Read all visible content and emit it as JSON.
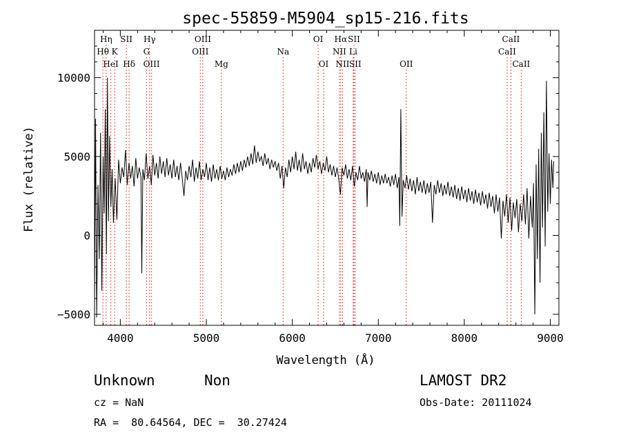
{
  "chart_data": {
    "type": "line",
    "title": "spec-55859-M5904_sp15-216.fits",
    "xlabel": "Wavelength (Å)",
    "ylabel": "Flux (relative)",
    "xlim": [
      3700,
      9100
    ],
    "ylim": [
      -5700,
      13000
    ],
    "xticks": [
      4000,
      5000,
      6000,
      7000,
      8000,
      9000
    ],
    "yticks": [
      -5000,
      0,
      5000,
      10000
    ],
    "grid": false,
    "series": [
      {
        "color": "#000000",
        "points": [
          [
            3700,
            -4200
          ],
          [
            3712,
            7400
          ],
          [
            3725,
            -5200
          ],
          [
            3740,
            3200
          ],
          [
            3755,
            -1500
          ],
          [
            3770,
            6500
          ],
          [
            3785,
            -3500
          ],
          [
            3800,
            5000
          ],
          [
            3812,
            1400
          ],
          [
            3825,
            8000
          ],
          [
            3838,
            -1200
          ],
          [
            3850,
            10000
          ],
          [
            3862,
            900
          ],
          [
            3875,
            6300
          ],
          [
            3890,
            1800
          ],
          [
            3905,
            4200
          ],
          [
            3920,
            800
          ],
          [
            3940,
            3600
          ],
          [
            3960,
            1000
          ],
          [
            3980,
            4800
          ],
          [
            4000,
            3300
          ],
          [
            4020,
            4300
          ],
          [
            4040,
            3700
          ],
          [
            4060,
            5400
          ],
          [
            4080,
            3200
          ],
          [
            4100,
            4600
          ],
          [
            4120,
            3600
          ],
          [
            4140,
            4400
          ],
          [
            4160,
            3100
          ],
          [
            4180,
            4900
          ],
          [
            4200,
            3600
          ],
          [
            4220,
            4300
          ],
          [
            4240,
            3700
          ],
          [
            4250,
            -2400
          ],
          [
            4262,
            4200
          ],
          [
            4280,
            3500
          ],
          [
            4300,
            5200
          ],
          [
            4320,
            3600
          ],
          [
            4340,
            4400
          ],
          [
            4360,
            3200
          ],
          [
            4380,
            5100
          ],
          [
            4400,
            3800
          ],
          [
            4420,
            4600
          ],
          [
            4440,
            3600
          ],
          [
            4460,
            5000
          ],
          [
            4480,
            3900
          ],
          [
            4500,
            4700
          ],
          [
            4520,
            3700
          ],
          [
            4540,
            4900
          ],
          [
            4560,
            3800
          ],
          [
            4580,
            4500
          ],
          [
            4600,
            3600
          ],
          [
            4620,
            4800
          ],
          [
            4640,
            3700
          ],
          [
            4660,
            4400
          ],
          [
            4680,
            3500
          ],
          [
            4700,
            4600
          ],
          [
            4720,
            3600
          ],
          [
            4740,
            2500
          ],
          [
            4760,
            4100
          ],
          [
            4780,
            3500
          ],
          [
            4800,
            4400
          ],
          [
            4820,
            3700
          ],
          [
            4840,
            4800
          ],
          [
            4860,
            3400
          ],
          [
            4880,
            4300
          ],
          [
            4900,
            3600
          ],
          [
            4920,
            4700
          ],
          [
            4940,
            3500
          ],
          [
            4960,
            4200
          ],
          [
            4980,
            3700
          ],
          [
            5000,
            4600
          ],
          [
            5020,
            3500
          ],
          [
            5040,
            4300
          ],
          [
            5060,
            3400
          ],
          [
            5080,
            4500
          ],
          [
            5100,
            3600
          ],
          [
            5120,
            4200
          ],
          [
            5140,
            3500
          ],
          [
            5160,
            4400
          ],
          [
            5180,
            3600
          ],
          [
            5200,
            4100
          ],
          [
            5220,
            3500
          ],
          [
            5240,
            4300
          ],
          [
            5260,
            3700
          ],
          [
            5280,
            4200
          ],
          [
            5300,
            3800
          ],
          [
            5320,
            4500
          ],
          [
            5340,
            3900
          ],
          [
            5360,
            4600
          ],
          [
            5380,
            4000
          ],
          [
            5400,
            4700
          ],
          [
            5420,
            4100
          ],
          [
            5440,
            4800
          ],
          [
            5460,
            4300
          ],
          [
            5480,
            5000
          ],
          [
            5500,
            4400
          ],
          [
            5520,
            5200
          ],
          [
            5540,
            4500
          ],
          [
            5560,
            5700
          ],
          [
            5580,
            4600
          ],
          [
            5600,
            5300
          ],
          [
            5620,
            4700
          ],
          [
            5640,
            5000
          ],
          [
            5660,
            4400
          ],
          [
            5680,
            5200
          ],
          [
            5700,
            4500
          ],
          [
            5720,
            4900
          ],
          [
            5740,
            4200
          ],
          [
            5760,
            4800
          ],
          [
            5780,
            4300
          ],
          [
            5800,
            4700
          ],
          [
            5820,
            4100
          ],
          [
            5840,
            4600
          ],
          [
            5860,
            3600
          ],
          [
            5880,
            4400
          ],
          [
            5900,
            3000
          ],
          [
            5920,
            4300
          ],
          [
            5940,
            3700
          ],
          [
            5960,
            4800
          ],
          [
            5980,
            4000
          ],
          [
            6000,
            5000
          ],
          [
            6020,
            4200
          ],
          [
            6040,
            5300
          ],
          [
            6060,
            4100
          ],
          [
            6080,
            4800
          ],
          [
            6100,
            4000
          ],
          [
            6120,
            5200
          ],
          [
            6140,
            4200
          ],
          [
            6160,
            4700
          ],
          [
            6180,
            3900
          ],
          [
            6200,
            4600
          ],
          [
            6220,
            4000
          ],
          [
            6240,
            4900
          ],
          [
            6260,
            4300
          ],
          [
            6280,
            5100
          ],
          [
            6300,
            4200
          ],
          [
            6320,
            4700
          ],
          [
            6340,
            3900
          ],
          [
            6360,
            4600
          ],
          [
            6380,
            4100
          ],
          [
            6400,
            5000
          ],
          [
            6420,
            4000
          ],
          [
            6440,
            4500
          ],
          [
            6460,
            3800
          ],
          [
            6480,
            4400
          ],
          [
            6500,
            3700
          ],
          [
            6520,
            4300
          ],
          [
            6540,
            3600
          ],
          [
            6560,
            2600
          ],
          [
            6580,
            4300
          ],
          [
            6600,
            3800
          ],
          [
            6620,
            4500
          ],
          [
            6640,
            3600
          ],
          [
            6660,
            4200
          ],
          [
            6680,
            3500
          ],
          [
            6700,
            4400
          ],
          [
            6720,
            3100
          ],
          [
            6740,
            4000
          ],
          [
            6760,
            3500
          ],
          [
            6780,
            4400
          ],
          [
            6800,
            3600
          ],
          [
            6820,
            4000
          ],
          [
            6840,
            3400
          ],
          [
            6860,
            4200
          ],
          [
            6870,
            1800
          ],
          [
            6880,
            4000
          ],
          [
            6900,
            3500
          ],
          [
            6920,
            4100
          ],
          [
            6940,
            3400
          ],
          [
            6960,
            3900
          ],
          [
            6980,
            3300
          ],
          [
            7000,
            4000
          ],
          [
            7020,
            3200
          ],
          [
            7040,
            3800
          ],
          [
            7060,
            3300
          ],
          [
            7080,
            3900
          ],
          [
            7100,
            3300
          ],
          [
            7120,
            3700
          ],
          [
            7140,
            3100
          ],
          [
            7160,
            3800
          ],
          [
            7180,
            3200
          ],
          [
            7200,
            3900
          ],
          [
            7220,
            3000
          ],
          [
            7240,
            3700
          ],
          [
            7250,
            600
          ],
          [
            7262,
            8000
          ],
          [
            7275,
            1200
          ],
          [
            7290,
            3500
          ],
          [
            7310,
            3000
          ],
          [
            7330,
            3800
          ],
          [
            7350,
            2900
          ],
          [
            7370,
            3600
          ],
          [
            7390,
            2800
          ],
          [
            7410,
            3500
          ],
          [
            7430,
            2600
          ],
          [
            7450,
            3700
          ],
          [
            7470,
            2800
          ],
          [
            7490,
            3400
          ],
          [
            7510,
            2700
          ],
          [
            7530,
            3500
          ],
          [
            7550,
            2600
          ],
          [
            7570,
            3300
          ],
          [
            7590,
            2700
          ],
          [
            7610,
            3400
          ],
          [
            7630,
            800
          ],
          [
            7650,
            3200
          ],
          [
            7670,
            2600
          ],
          [
            7690,
            3500
          ],
          [
            7710,
            2700
          ],
          [
            7730,
            3300
          ],
          [
            7750,
            2500
          ],
          [
            7770,
            3200
          ],
          [
            7790,
            2600
          ],
          [
            7810,
            3400
          ],
          [
            7830,
            2500
          ],
          [
            7850,
            3100
          ],
          [
            7870,
            2400
          ],
          [
            7890,
            3200
          ],
          [
            7910,
            2300
          ],
          [
            7930,
            3000
          ],
          [
            7950,
            2200
          ],
          [
            7970,
            3100
          ],
          [
            7990,
            2300
          ],
          [
            8010,
            2900
          ],
          [
            8030,
            2100
          ],
          [
            8050,
            3000
          ],
          [
            8070,
            2200
          ],
          [
            8090,
            2800
          ],
          [
            8110,
            2000
          ],
          [
            8130,
            2900
          ],
          [
            8150,
            2100
          ],
          [
            8170,
            2700
          ],
          [
            8190,
            1900
          ],
          [
            8210,
            2800
          ],
          [
            8230,
            2000
          ],
          [
            8250,
            2600
          ],
          [
            8270,
            1700
          ],
          [
            8290,
            2700
          ],
          [
            8310,
            1800
          ],
          [
            8330,
            2500
          ],
          [
            8350,
            1400
          ],
          [
            8370,
            2600
          ],
          [
            8390,
            1500
          ],
          [
            8410,
            2400
          ],
          [
            8430,
            -200
          ],
          [
            8450,
            2200
          ],
          [
            8470,
            1200
          ],
          [
            8490,
            2600
          ],
          [
            8510,
            800
          ],
          [
            8530,
            2400
          ],
          [
            8550,
            300
          ],
          [
            8570,
            2100
          ],
          [
            8590,
            1100
          ],
          [
            8610,
            2300
          ],
          [
            8630,
            200
          ],
          [
            8650,
            2000
          ],
          [
            8670,
            900
          ],
          [
            8690,
            2600
          ],
          [
            8710,
            700
          ],
          [
            8730,
            3000
          ],
          [
            8750,
            -200
          ],
          [
            8770,
            2500
          ],
          [
            8790,
            500
          ],
          [
            8805,
            3300
          ],
          [
            8820,
            -5000
          ],
          [
            8835,
            4500
          ],
          [
            8850,
            -1500
          ],
          [
            8865,
            5500
          ],
          [
            8880,
            -3000
          ],
          [
            8895,
            6500
          ],
          [
            8910,
            500
          ],
          [
            8925,
            7800
          ],
          [
            8940,
            -700
          ],
          [
            8955,
            9800
          ],
          [
            8970,
            1500
          ],
          [
            8985,
            5200
          ],
          [
            9000,
            2000
          ],
          [
            9015,
            4800
          ],
          [
            9030,
            3000
          ],
          [
            9040,
            4700
          ]
        ]
      }
    ],
    "line_markers": [
      {
        "label": "Hη",
        "x": 3835,
        "row": 0
      },
      {
        "label": "SII",
        "x": 4070,
        "row": 0
      },
      {
        "label": "Hγ",
        "x": 4340,
        "row": 0
      },
      {
        "label": "OIII",
        "x": 4959,
        "row": 0
      },
      {
        "label": "OI",
        "x": 6300,
        "row": 0
      },
      {
        "label": "Hα",
        "x": 6563,
        "row": 0
      },
      {
        "label": "SII",
        "x": 6717,
        "row": 0
      },
      {
        "label": "CaII",
        "x": 8542,
        "row": 0
      },
      {
        "label": "Hθ",
        "x": 3797,
        "row": 1
      },
      {
        "label": "K",
        "x": 3934,
        "row": 1
      },
      {
        "label": "G",
        "x": 4305,
        "row": 1
      },
      {
        "label": "OIII",
        "x": 4930,
        "row": 1
      },
      {
        "label": "Na",
        "x": 5893,
        "row": 1
      },
      {
        "label": "NII",
        "x": 6548,
        "row": 1
      },
      {
        "label": "Li",
        "x": 6708,
        "row": 1
      },
      {
        "label": "CaII",
        "x": 8498,
        "row": 1
      },
      {
        "label": "HeI",
        "x": 3889,
        "row": 2
      },
      {
        "label": "Hδ",
        "x": 4102,
        "row": 2
      },
      {
        "label": "OIII",
        "x": 4363,
        "row": 2
      },
      {
        "label": "Mg",
        "x": 5175,
        "row": 2
      },
      {
        "label": "OI",
        "x": 6364,
        "row": 2
      },
      {
        "label": "NII",
        "x": 6584,
        "row": 2
      },
      {
        "label": "SII",
        "x": 6731,
        "row": 2
      },
      {
        "label": "OII",
        "x": 7325,
        "row": 2
      },
      {
        "label": "CaII",
        "x": 8662,
        "row": 2
      }
    ],
    "line_marker_color": "#ff0000"
  },
  "info": {
    "class_label": "Unknown",
    "subclass_label": "Non",
    "survey_label": "LAMOST DR2",
    "cz_text": "cz = NaN",
    "obsdate_text": "Obs-Date: 20111024",
    "radec_text": "RA =  80.64564, DEC =  30.27424"
  }
}
